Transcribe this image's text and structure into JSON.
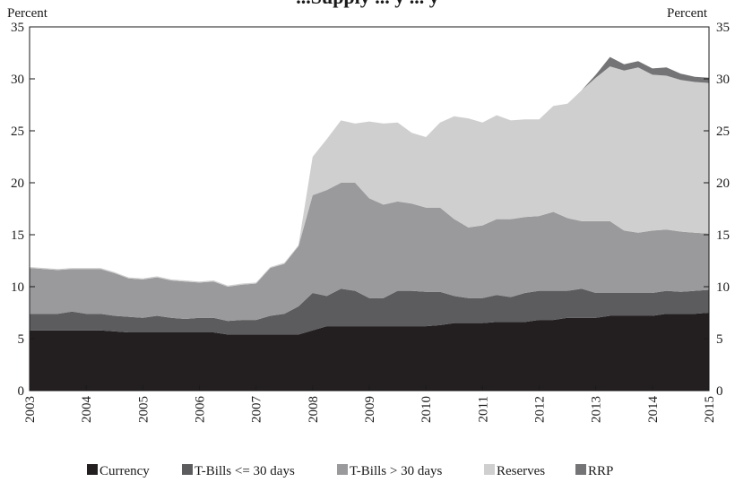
{
  "chart_data": {
    "type": "area",
    "title": "...Supply ... y ... y",
    "y_unit_left": "Percent",
    "y_unit_right": "Percent",
    "ylim": [
      0,
      35
    ],
    "y_ticks": [
      "0",
      "5",
      "10",
      "15",
      "20",
      "25",
      "30",
      "35"
    ],
    "xlim": [
      2003,
      2015
    ],
    "x_ticks": [
      "2003",
      "2004",
      "2005",
      "2006",
      "2007",
      "2008",
      "2009",
      "2010",
      "2011",
      "2012",
      "2013",
      "2014",
      "2015"
    ],
    "stacked": true,
    "grid": false,
    "legend_position": "bottom",
    "x": [
      2003.0,
      2003.25,
      2003.5,
      2003.75,
      2004.0,
      2004.25,
      2004.5,
      2004.75,
      2005.0,
      2005.25,
      2005.5,
      2005.75,
      2006.0,
      2006.25,
      2006.5,
      2006.75,
      2007.0,
      2007.25,
      2007.5,
      2007.75,
      2008.0,
      2008.25,
      2008.5,
      2008.75,
      2009.0,
      2009.25,
      2009.5,
      2009.75,
      2010.0,
      2010.25,
      2010.5,
      2010.75,
      2011.0,
      2011.25,
      2011.5,
      2011.75,
      2012.0,
      2012.25,
      2012.5,
      2012.75,
      2013.0,
      2013.25,
      2013.5,
      2013.75,
      2014.0,
      2014.25,
      2014.5,
      2014.75,
      2015.0
    ],
    "series": [
      {
        "name": "Currency",
        "color": "#231f20",
        "values": [
          5.8,
          5.8,
          5.8,
          5.8,
          5.8,
          5.8,
          5.7,
          5.6,
          5.6,
          5.6,
          5.6,
          5.6,
          5.6,
          5.6,
          5.4,
          5.4,
          5.4,
          5.4,
          5.4,
          5.4,
          5.8,
          6.2,
          6.2,
          6.2,
          6.2,
          6.2,
          6.2,
          6.2,
          6.2,
          6.3,
          6.5,
          6.5,
          6.5,
          6.6,
          6.6,
          6.6,
          6.8,
          6.8,
          7.0,
          7.0,
          7.0,
          7.2,
          7.2,
          7.2,
          7.2,
          7.4,
          7.4,
          7.4,
          7.5
        ]
      },
      {
        "name": "T-Bills <= 30 days",
        "color": "#5c5c5e",
        "values": [
          1.6,
          1.6,
          1.6,
          1.8,
          1.6,
          1.6,
          1.5,
          1.5,
          1.4,
          1.6,
          1.4,
          1.3,
          1.4,
          1.4,
          1.3,
          1.4,
          1.4,
          1.8,
          2.0,
          2.7,
          3.6,
          2.9,
          3.6,
          3.4,
          2.7,
          2.7,
          3.4,
          3.4,
          3.3,
          3.2,
          2.6,
          2.4,
          2.4,
          2.6,
          2.4,
          2.8,
          2.8,
          2.8,
          2.6,
          2.8,
          2.4,
          2.2,
          2.2,
          2.2,
          2.2,
          2.2,
          2.1,
          2.2,
          2.2
        ]
      },
      {
        "name": "T-Bills > 30 days",
        "color": "#9a9a9c",
        "values": [
          4.4,
          4.3,
          4.2,
          4.1,
          4.3,
          4.3,
          4.1,
          3.7,
          3.7,
          3.7,
          3.6,
          3.6,
          3.4,
          3.5,
          3.3,
          3.4,
          3.5,
          4.6,
          4.8,
          5.8,
          9.4,
          10.2,
          10.2,
          10.4,
          9.6,
          9.0,
          8.6,
          8.4,
          8.1,
          8.1,
          7.4,
          6.8,
          7.0,
          7.3,
          7.5,
          7.3,
          7.2,
          7.6,
          7.0,
          6.5,
          6.9,
          6.9,
          6.0,
          5.8,
          6.0,
          5.9,
          5.8,
          5.6,
          5.4
        ]
      },
      {
        "name": "Reserves",
        "color": "#cfcfd0",
        "values": [
          0.1,
          0.1,
          0.1,
          0.1,
          0.1,
          0.1,
          0.1,
          0.1,
          0.1,
          0.1,
          0.1,
          0.1,
          0.1,
          0.1,
          0.1,
          0.1,
          0.1,
          0.1,
          0.1,
          0.1,
          3.7,
          4.9,
          6.0,
          5.7,
          7.4,
          7.8,
          7.6,
          6.8,
          6.8,
          8.2,
          9.9,
          10.5,
          9.9,
          10.0,
          9.5,
          9.4,
          9.3,
          10.2,
          11.0,
          12.6,
          13.8,
          14.9,
          15.4,
          15.9,
          15.0,
          14.8,
          14.6,
          14.5,
          14.5
        ]
      },
      {
        "name": "RRP",
        "color": "#747476",
        "values": [
          0,
          0,
          0,
          0,
          0,
          0,
          0,
          0,
          0,
          0,
          0,
          0,
          0,
          0,
          0,
          0,
          0,
          0,
          0,
          0,
          0,
          0,
          0,
          0,
          0,
          0,
          0,
          0,
          0,
          0,
          0,
          0,
          0,
          0,
          0,
          0,
          0,
          0,
          0,
          0,
          0.3,
          0.9,
          0.6,
          0.6,
          0.6,
          0.8,
          0.6,
          0.5,
          0.5
        ]
      }
    ]
  }
}
